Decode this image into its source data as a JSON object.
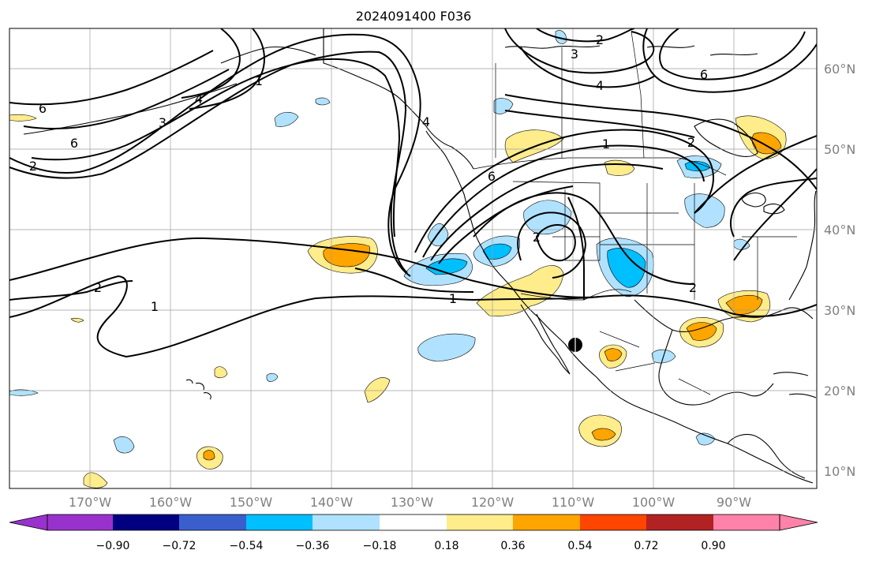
{
  "title": "2024091400 F036",
  "lon_labels": [
    "170°W",
    "160°W",
    "150°W",
    "140°W",
    "130°W",
    "120°W",
    "110°W",
    "100°W",
    "90°W"
  ],
  "lat_labels": [
    "60°N",
    "50°N",
    "40°N",
    "30°N",
    "20°N",
    "10°N"
  ],
  "contour_labels": [
    "6",
    "6",
    "4",
    "3",
    "2",
    "1",
    "6",
    "4",
    "2",
    "1",
    "1",
    "2",
    "2",
    "1",
    "6",
    "4",
    "3",
    "2",
    "2"
  ],
  "colorbar": {
    "tick_labels": [
      "−0.90",
      "−0.72",
      "−0.54",
      "−0.36",
      "−0.18",
      "0.18",
      "0.36",
      "0.54",
      "0.72",
      "0.90"
    ],
    "colors": {
      "below": "#9932cc",
      "bins": [
        "#000080",
        "#3a5fcd",
        "#00bfff",
        "#b0e2ff",
        "#ffffff",
        "#ffec8b",
        "#ffa500",
        "#ff4500",
        "#b22222"
      ],
      "above": "#ff82ab"
    }
  },
  "map_colors": {
    "land_line": "#000000",
    "grid": "#9e9e9e",
    "contour": "#000000"
  },
  "marker_icon": "storm-center-dot"
}
